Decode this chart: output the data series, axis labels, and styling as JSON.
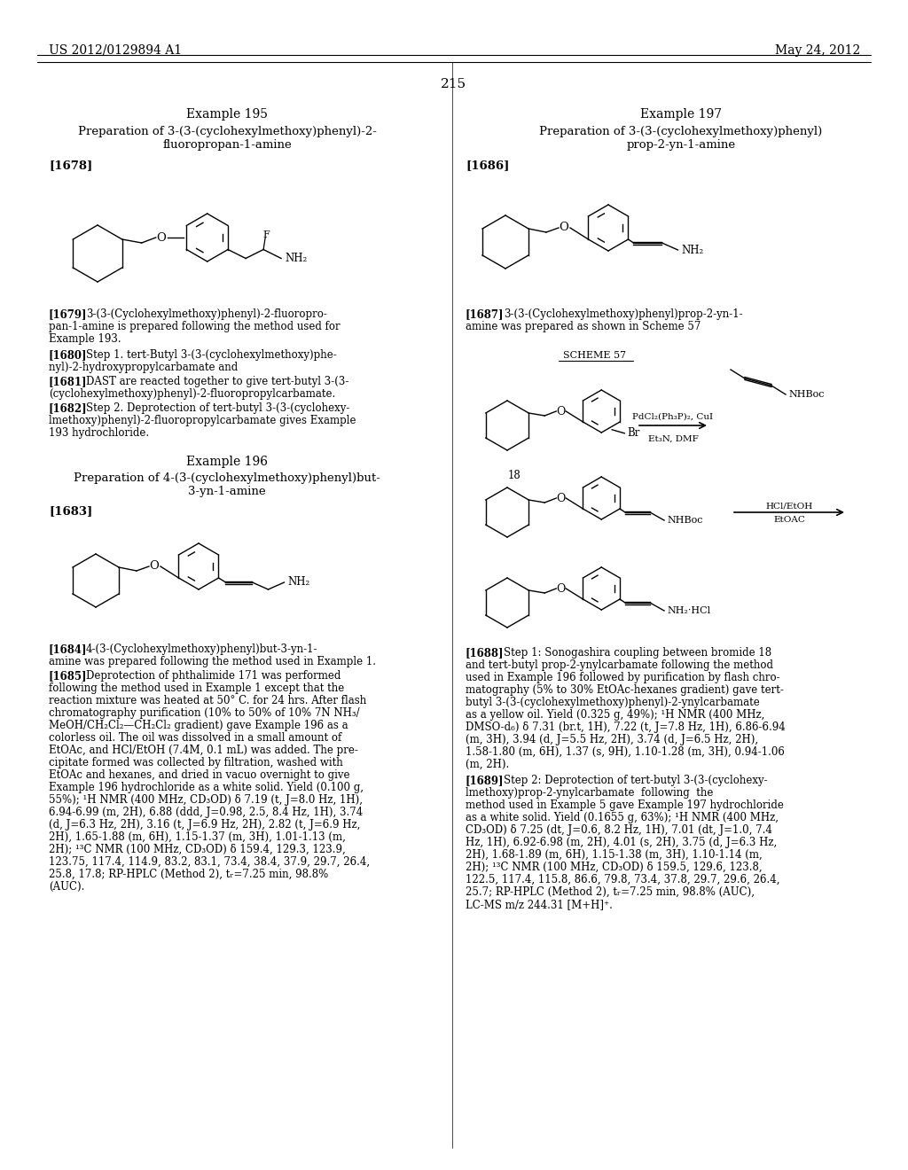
{
  "page_number": "215",
  "header_left": "US 2012/0129894 A1",
  "header_right": "May 24, 2012",
  "bg": "#ffffff"
}
